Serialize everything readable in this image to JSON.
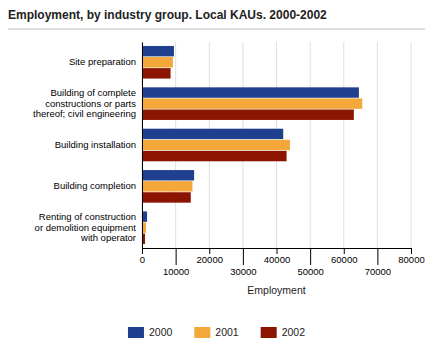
{
  "chart_data": {
    "type": "bar",
    "orientation": "horizontal",
    "title": "Employment, by industry group. Local KAUs. 2000-2002",
    "categories": [
      "Site preparation",
      "Building of complete\nconstructions or parts\nthereof; civil engineering",
      "Building installation",
      "Building completion",
      "Renting of construction\nor demolition equipment\nwith operator"
    ],
    "series": [
      {
        "name": "2000",
        "color": "#1f3f8f",
        "values": [
          9500,
          64500,
          42000,
          15500,
          1500
        ]
      },
      {
        "name": "2001",
        "color": "#f5a83a",
        "values": [
          9200,
          65500,
          44000,
          15000,
          1200
        ]
      },
      {
        "name": "2002",
        "color": "#8b1500",
        "values": [
          8500,
          63000,
          43000,
          14500,
          900
        ]
      }
    ],
    "xlabel": "Employment",
    "xlim": [
      0,
      80000
    ],
    "xticks": [
      0,
      10000,
      20000,
      30000,
      40000,
      50000,
      60000,
      70000,
      80000
    ],
    "grid": true,
    "legend": "bottom"
  }
}
